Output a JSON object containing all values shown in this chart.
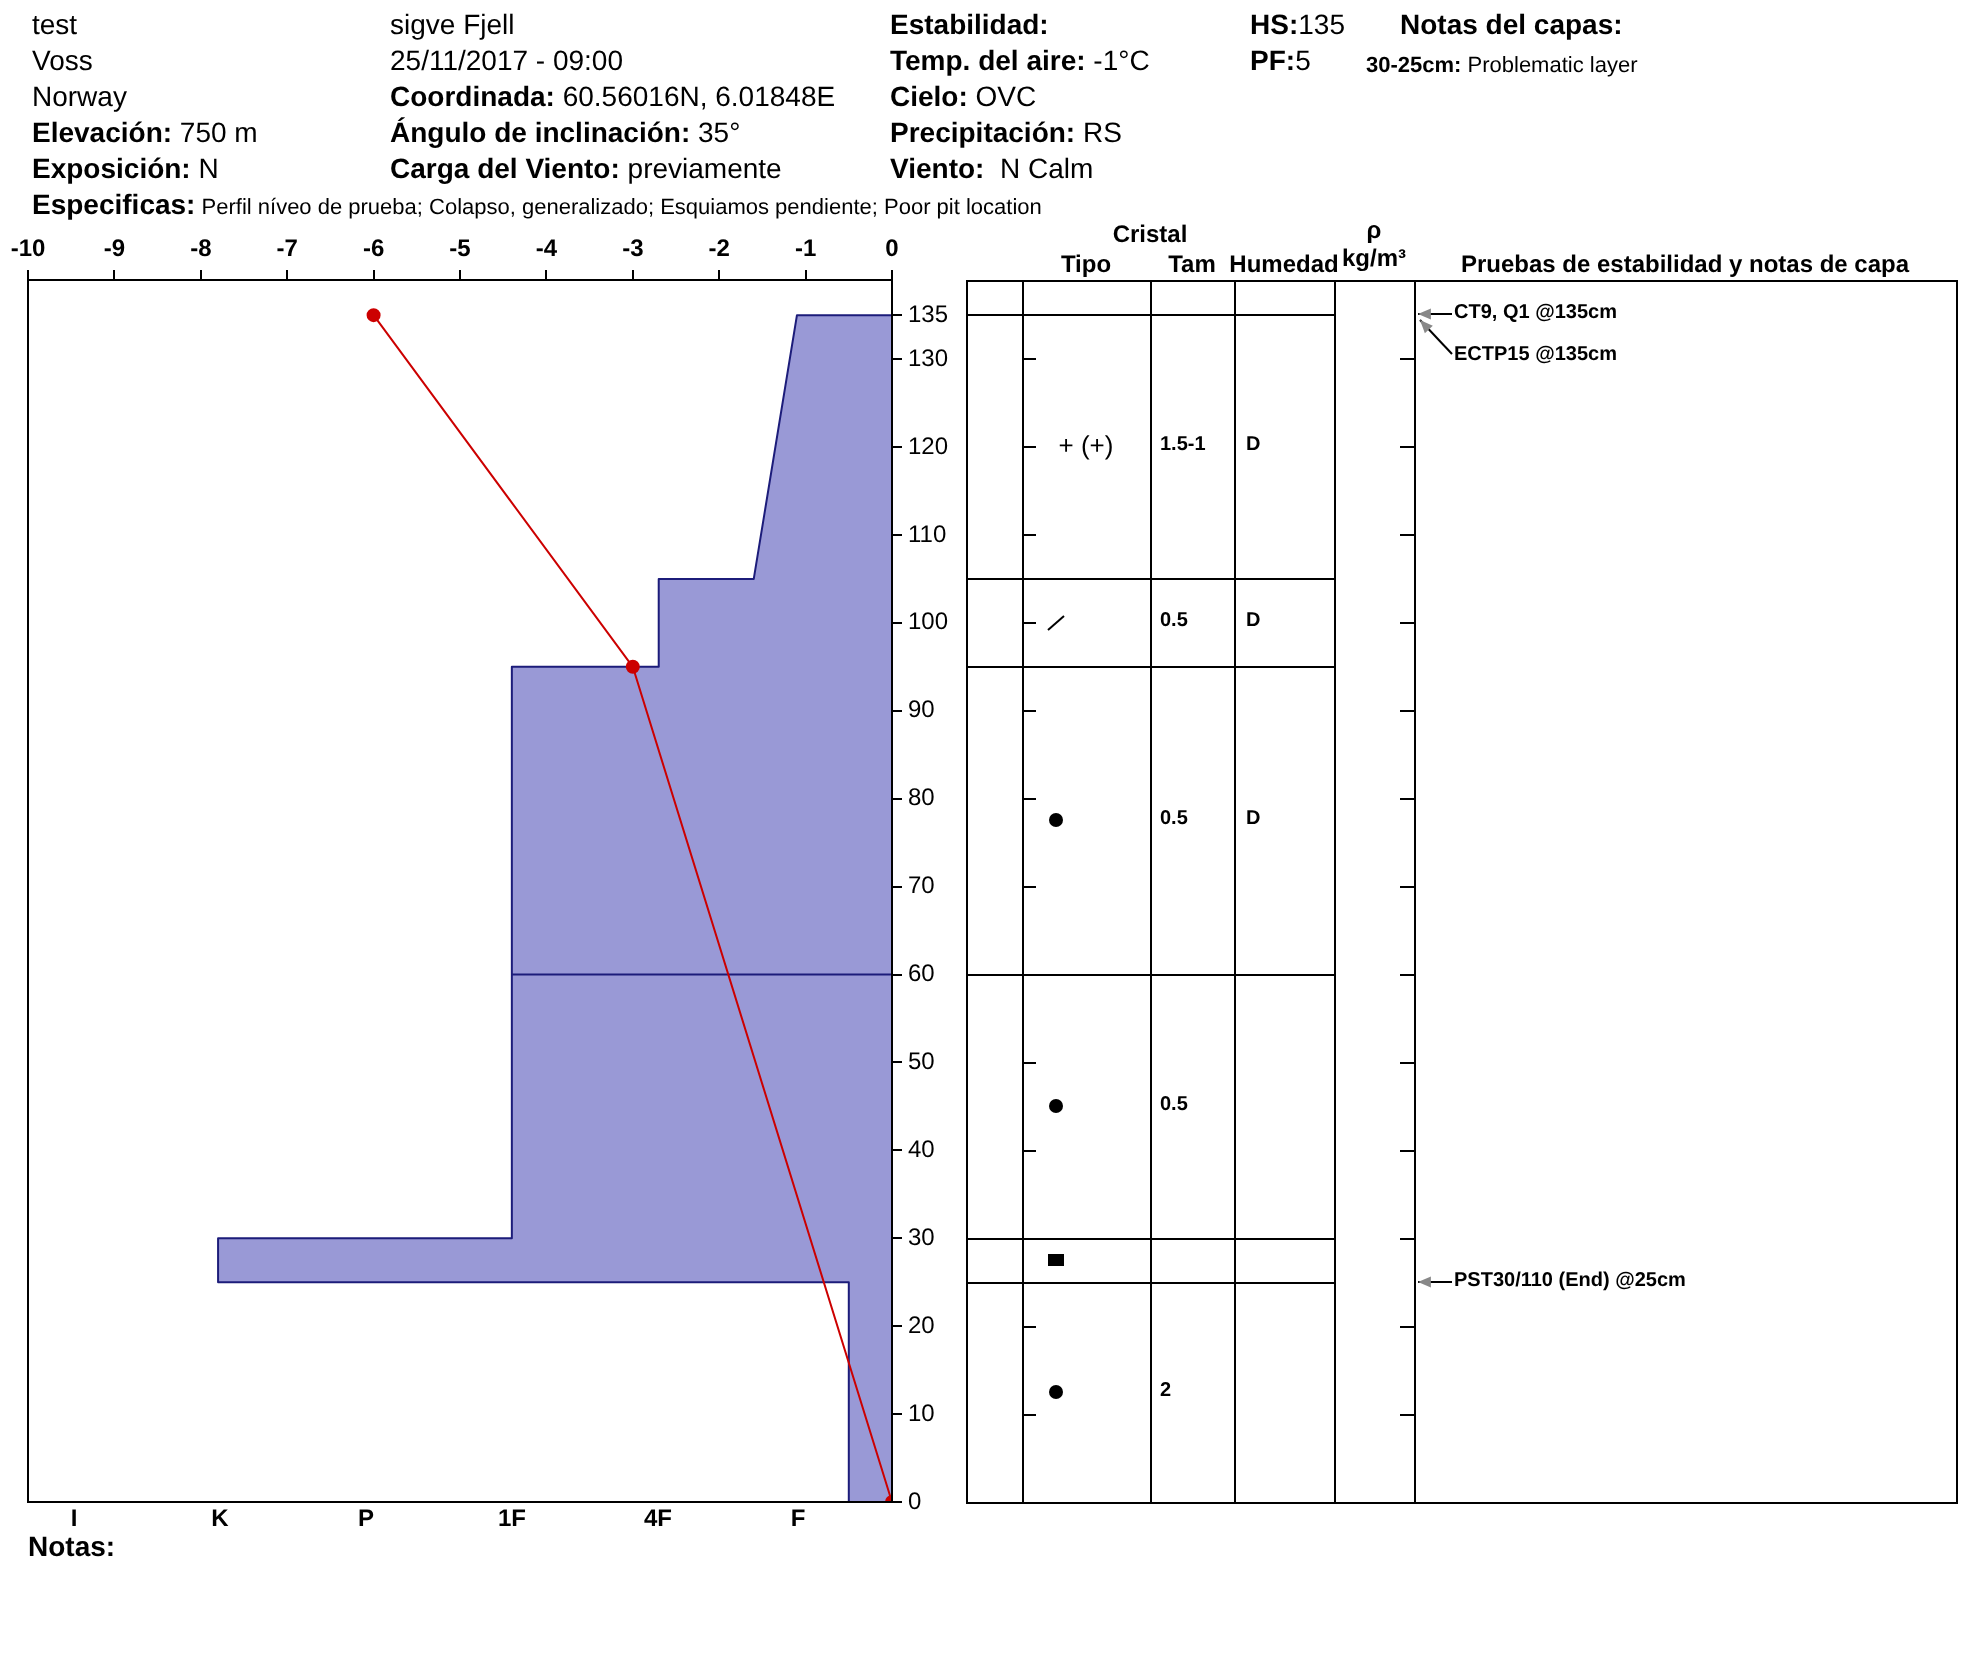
{
  "chart_data": [
    {
      "type": "line",
      "xlim": [
        -10,
        0
      ],
      "xticks": [
        -10,
        -9,
        -8,
        -7,
        -6,
        -5,
        -4,
        -3,
        -2,
        -1,
        0
      ],
      "ylim": [
        0,
        139
      ],
      "yticks": [
        0,
        10,
        20,
        30,
        40,
        50,
        60,
        70,
        80,
        90,
        100,
        110,
        120,
        130,
        135
      ],
      "grid": false,
      "legend": false,
      "series": [
        {
          "type": "area",
          "color": "#9999d6",
          "marker": "none",
          "x": [
            0,
            -0.5,
            -0.5,
            -7.8,
            -7.8,
            -4.4,
            -4.4,
            0,
            -4.4,
            -4.4,
            -2.7,
            -2.7,
            -1.6,
            -1.1,
            0
          ],
          "values": [
            0,
            0,
            25,
            25,
            30,
            30,
            60,
            60,
            60,
            95,
            95,
            105,
            105,
            135,
            135
          ]
        },
        {
          "type": "line",
          "color": "#cc0000",
          "marker": "circle",
          "x": [
            -6,
            -3,
            0
          ],
          "values": [
            135,
            95,
            0
          ]
        }
      ],
      "annotations": [
        "test",
        "Voss",
        "Norway",
        "Elevación: 750 m",
        "Exposición: N",
        "Especificas: Perfil níveo de prueba; Colapso, generalizado; Esquiamos pendiente; Poor pit location",
        "sigve Fjell",
        "25/11/2017 - 09:00",
        "Coordinada: 60.56016N, 6.01848E",
        "Ángulo de inclinación: 35°",
        "Carga del Viento: previamente",
        "Estabilidad:",
        "Temp. del aire: -1°C",
        "Cielo: OVC",
        "Precipitación: RS",
        "Viento:  N Calm",
        "HS:135",
        "PF:5",
        "Notas del capas:",
        "30-25cm: Problematic layer",
        "Notas:",
        "I",
        "K",
        "P",
        "1F",
        "4F",
        "F"
      ]
    },
    {
      "type": "other",
      "categories": [
        null,
        "Tipo",
        "Tam",
        "Humedad",
        "ρ\nkg/m³",
        "Pruebas de estabilidad y notas de capa"
      ],
      "annotations": [
        "Cristal",
        "+ (+)",
        "1.5-1",
        "D",
        "0.5",
        "D",
        "0.5",
        "D",
        "0.5",
        "2",
        "CT9, Q1 @135cm",
        "ECTP15 @135cm",
        "PST30/110 (End) @25cm"
      ]
    }
  ]
}
